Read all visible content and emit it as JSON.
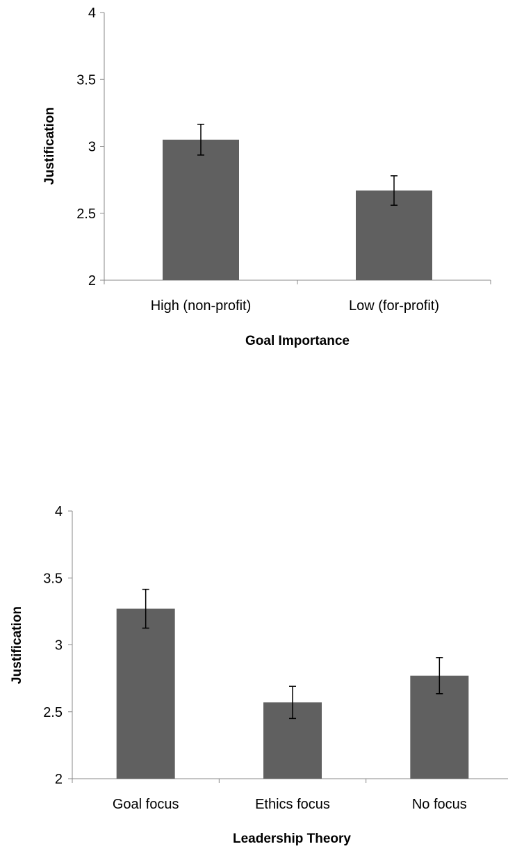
{
  "chart_data": [
    {
      "type": "bar",
      "categories": [
        "High (non-profit)",
        "Low (for-profit)"
      ],
      "values": [
        3.05,
        2.67
      ],
      "error": [
        0.115,
        0.11
      ],
      "xlabel": "Goal Importance",
      "ylabel": "Justification",
      "ylim": [
        2,
        4
      ],
      "yticks": [
        "2",
        "2.5",
        "3",
        "3.5",
        "4"
      ],
      "bar_color": "#606060",
      "grid": false
    },
    {
      "type": "bar",
      "categories": [
        "Goal focus",
        "Ethics focus",
        "No focus"
      ],
      "values": [
        3.27,
        2.57,
        2.77
      ],
      "error": [
        0.145,
        0.12,
        0.135
      ],
      "xlabel": "Leadership Theory",
      "ylabel": "Justification",
      "ylim": [
        2,
        4
      ],
      "yticks": [
        "2",
        "2.5",
        "3",
        "3.5",
        "4"
      ],
      "bar_color": "#606060",
      "grid": false
    }
  ]
}
